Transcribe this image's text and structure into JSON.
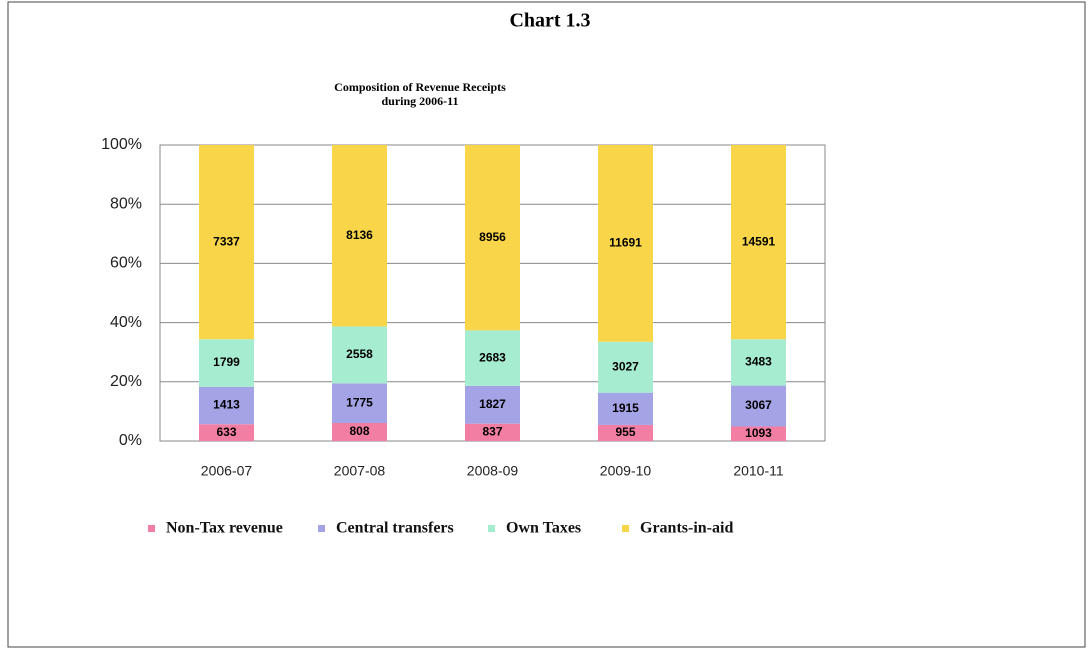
{
  "chart_data": {
    "type": "bar",
    "stacking": "percent",
    "title": "Chart 1.3",
    "subtitle": [
      "Composition of Revenue Receipts",
      "during 2006-11"
    ],
    "categories": [
      "2006-07",
      "2007-08",
      "2008-09",
      "2009-10",
      "2010-11"
    ],
    "series": [
      {
        "name": "Non-Tax revenue",
        "color": "#f27ea3",
        "values": [
          633,
          808,
          837,
          955,
          1093
        ]
      },
      {
        "name": "Central transfers",
        "color": "#a3a3e6",
        "values": [
          1413,
          1775,
          1827,
          1915,
          3067
        ]
      },
      {
        "name": "Own Taxes",
        "color": "#a6ecd0",
        "values": [
          1799,
          2558,
          2683,
          3027,
          3483
        ]
      },
      {
        "name": "Grants-in-aid",
        "color": "#f9d54a",
        "values": [
          7337,
          8136,
          8956,
          11691,
          14591
        ]
      }
    ],
    "ylim": [
      0,
      100
    ],
    "yticks": [
      {
        "value": 0,
        "label": "0%"
      },
      {
        "value": 20,
        "label": "20%"
      },
      {
        "value": 40,
        "label": "40%"
      },
      {
        "value": 60,
        "label": "60%"
      },
      {
        "value": 80,
        "label": "80%"
      },
      {
        "value": 100,
        "label": "100%"
      }
    ],
    "grid": true,
    "legend": "bottom"
  }
}
